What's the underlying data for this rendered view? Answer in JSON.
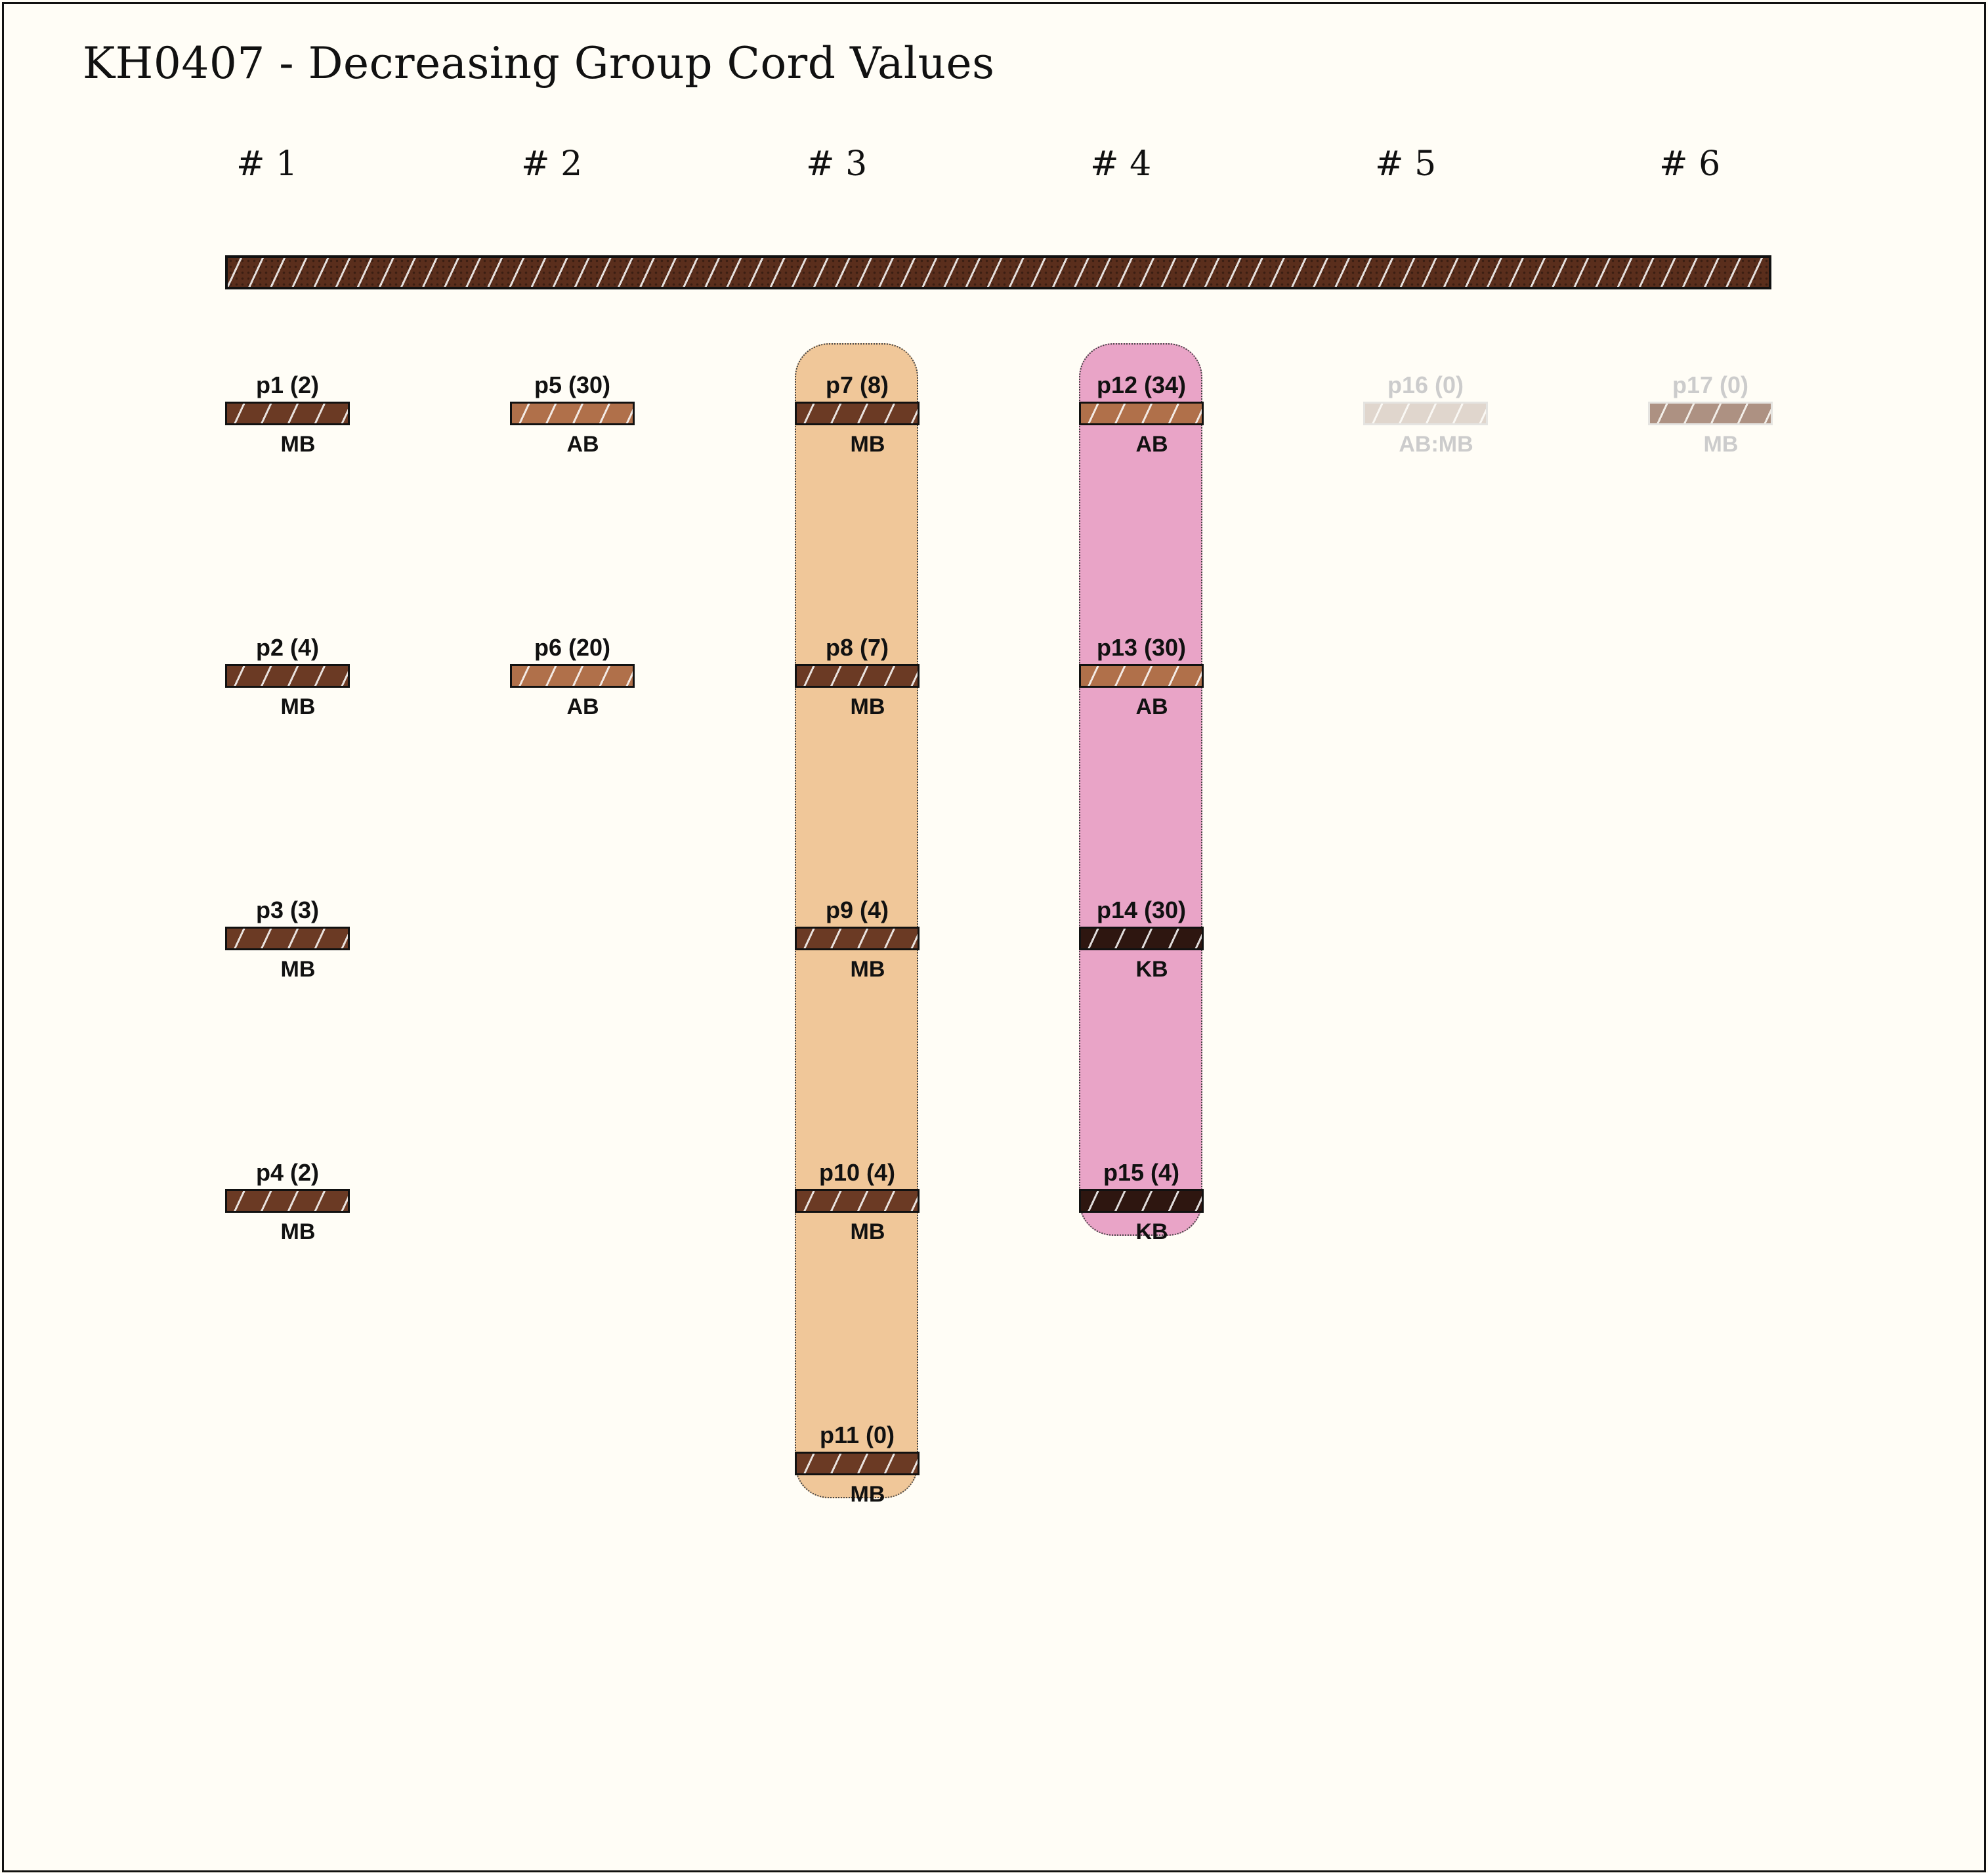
{
  "title": "KH0407 - Decreasing Group Cord Values",
  "columns": [
    "# 1",
    "# 2",
    "# 3",
    "# 4",
    "# 5",
    "# 6"
  ],
  "colors": {
    "MB": "#6b3a24",
    "AB": "#b0704a",
    "KB": "#2e1610",
    "AB:MB": "#c8b8ac",
    "primary": "#5a2e1c",
    "group3_band": "#f0c799",
    "group4_band": "#e9a4c7",
    "background": "#fffdf6"
  },
  "groups": [
    {
      "column": "# 1",
      "highlighted": false,
      "pendants": [
        {
          "label": "p1 (2)",
          "color_code": "MB"
        },
        {
          "label": "p2 (4)",
          "color_code": "MB"
        },
        {
          "label": "p3 (3)",
          "color_code": "MB"
        },
        {
          "label": "p4 (2)",
          "color_code": "MB"
        }
      ]
    },
    {
      "column": "# 2",
      "highlighted": false,
      "pendants": [
        {
          "label": "p5 (30)",
          "color_code": "AB"
        },
        {
          "label": "p6 (20)",
          "color_code": "AB"
        }
      ]
    },
    {
      "column": "# 3",
      "highlighted": true,
      "band_color": "#f0c799",
      "pendants": [
        {
          "label": "p7 (8)",
          "color_code": "MB"
        },
        {
          "label": "p8 (7)",
          "color_code": "MB"
        },
        {
          "label": "p9 (4)",
          "color_code": "MB"
        },
        {
          "label": "p10 (4)",
          "color_code": "MB"
        },
        {
          "label": "p11 (0)",
          "color_code": "MB"
        }
      ]
    },
    {
      "column": "# 4",
      "highlighted": true,
      "band_color": "#e9a4c7",
      "pendants": [
        {
          "label": "p12 (34)",
          "color_code": "AB"
        },
        {
          "label": "p13 (30)",
          "color_code": "AB"
        },
        {
          "label": "p14 (30)",
          "color_code": "KB"
        },
        {
          "label": "p15 (4)",
          "color_code": "KB"
        }
      ]
    },
    {
      "column": "# 5",
      "highlighted": false,
      "faded": true,
      "pendants": [
        {
          "label": "p16 (0)",
          "color_code": "AB:MB"
        }
      ]
    },
    {
      "column": "# 6",
      "highlighted": false,
      "faded": true,
      "pendants": [
        {
          "label": "p17 (0)",
          "color_code": "MB"
        }
      ]
    }
  ]
}
